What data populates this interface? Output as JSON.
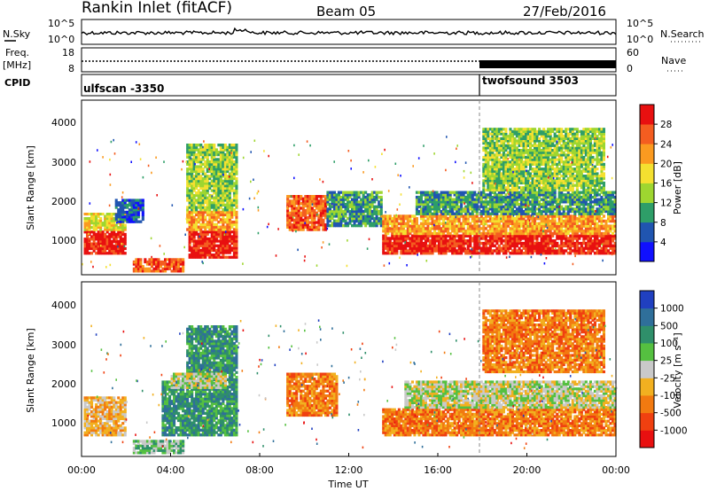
{
  "header": {
    "site": "Rankin Inlet (fitACF)",
    "beam": "Beam 05",
    "date": "27/Feb/2016"
  },
  "nsky_panel": {
    "left_label": "N.Sky",
    "right_label": "N.Search",
    "ticks_left": [
      "10^5",
      "10^0"
    ],
    "ticks_right": [
      "10^5",
      "10^0"
    ]
  },
  "freq_panel": {
    "label_top": "Freq.",
    "label_unit": "[MHz]",
    "ticks_left": [
      "18",
      "8"
    ],
    "right_label": "Nave",
    "ticks_right": [
      "60",
      "0"
    ]
  },
  "cpid_panel": {
    "label": "CPID",
    "programs": [
      {
        "name": "ulfscan -3350",
        "start_h": 0
      },
      {
        "name": "twofsound 3503",
        "start_h": 18
      }
    ]
  },
  "power_panel": {
    "ylabel": "Slant Range [km]",
    "yticks": [
      "1000",
      "2000",
      "3000",
      "4000"
    ],
    "colorbar_label": "Power [dB]",
    "colorbar_ticks": [
      "4",
      "8",
      "12",
      "16",
      "20",
      "24",
      "28"
    ],
    "colors": [
      "#1010ff",
      "#2055b0",
      "#2e9e68",
      "#9ed630",
      "#f4e030",
      "#fb9a20",
      "#f45d20",
      "#e81010"
    ]
  },
  "velocity_panel": {
    "ylabel": "Slant Range [km]",
    "yticks": [
      "1000",
      "2000",
      "3000",
      "4000"
    ],
    "colorbar_label": "Velocity [m s⁻¹]",
    "colorbar_ticks": [
      "1000",
      "500",
      "100",
      "25",
      "-25",
      "-100",
      "-500",
      "-1000"
    ],
    "colors": [
      "#2040c0",
      "#2f6f9a",
      "#2f8f6a",
      "#55c040",
      "#c9c9c9",
      "#f2b020",
      "#f27a10",
      "#f04010",
      "#e81010"
    ]
  },
  "x_axis": {
    "ticks": [
      "00:00",
      "04:00",
      "08:00",
      "12:00",
      "16:00",
      "20:00",
      "00:00"
    ],
    "label": "Time UT"
  },
  "chart_data": {
    "type": "heatmap",
    "x_range_hours": [
      0,
      24
    ],
    "y_range_km": [
      180,
      4600
    ],
    "mode_change_hour": 18,
    "power_bands": [
      {
        "t0": 0.1,
        "t1": 2.0,
        "r0": 700,
        "r1": 1300,
        "level": 7
      },
      {
        "t0": 0.1,
        "t1": 2.0,
        "r0": 1300,
        "r1": 1750,
        "level": 4
      },
      {
        "t0": 1.5,
        "t1": 2.8,
        "r0": 1500,
        "r1": 2100,
        "level": 1
      },
      {
        "t0": 2.3,
        "t1": 4.6,
        "r0": 250,
        "r1": 600,
        "level": 6
      },
      {
        "t0": 4.8,
        "t1": 7.0,
        "r0": 600,
        "r1": 1300,
        "level": 7
      },
      {
        "t0": 4.7,
        "t1": 7.0,
        "r0": 1300,
        "r1": 1800,
        "level": 5
      },
      {
        "t0": 4.7,
        "t1": 7.0,
        "r0": 1800,
        "r1": 3500,
        "level": 3
      },
      {
        "t0": 9.2,
        "t1": 11.0,
        "r0": 1300,
        "r1": 2200,
        "level": 6
      },
      {
        "t0": 11.0,
        "t1": 13.5,
        "r0": 1400,
        "r1": 2300,
        "level": 2
      },
      {
        "t0": 13.5,
        "t1": 24.0,
        "r0": 700,
        "r1": 1200,
        "level": 7
      },
      {
        "t0": 13.5,
        "t1": 24.0,
        "r0": 1200,
        "r1": 1700,
        "level": 5
      },
      {
        "t0": 15.0,
        "t1": 24.0,
        "r0": 1700,
        "r1": 2300,
        "level": 2
      },
      {
        "t0": 18.0,
        "t1": 23.5,
        "r0": 2300,
        "r1": 3900,
        "level": 3
      }
    ],
    "velocity_bands": [
      {
        "t0": 0.1,
        "t1": 2.0,
        "r0": 700,
        "r1": 1700,
        "level": 5
      },
      {
        "t0": 2.3,
        "t1": 4.6,
        "r0": 250,
        "r1": 600,
        "level": 3
      },
      {
        "t0": 3.6,
        "t1": 7.0,
        "r0": 700,
        "r1": 2100,
        "level": 2
      },
      {
        "t0": 4.7,
        "t1": 7.0,
        "r0": 2100,
        "r1": 3500,
        "level": 2
      },
      {
        "t0": 4.0,
        "t1": 6.5,
        "r0": 1900,
        "r1": 2300,
        "level": 4
      },
      {
        "t0": 9.2,
        "t1": 11.5,
        "r0": 1200,
        "r1": 2300,
        "level": 6
      },
      {
        "t0": 13.5,
        "t1": 24.0,
        "r0": 700,
        "r1": 1400,
        "level": 6
      },
      {
        "t0": 14.5,
        "t1": 24.0,
        "r0": 1400,
        "r1": 2100,
        "level": 4
      },
      {
        "t0": 18.0,
        "t1": 23.5,
        "r0": 2300,
        "r1": 3900,
        "level": 6
      }
    ]
  }
}
